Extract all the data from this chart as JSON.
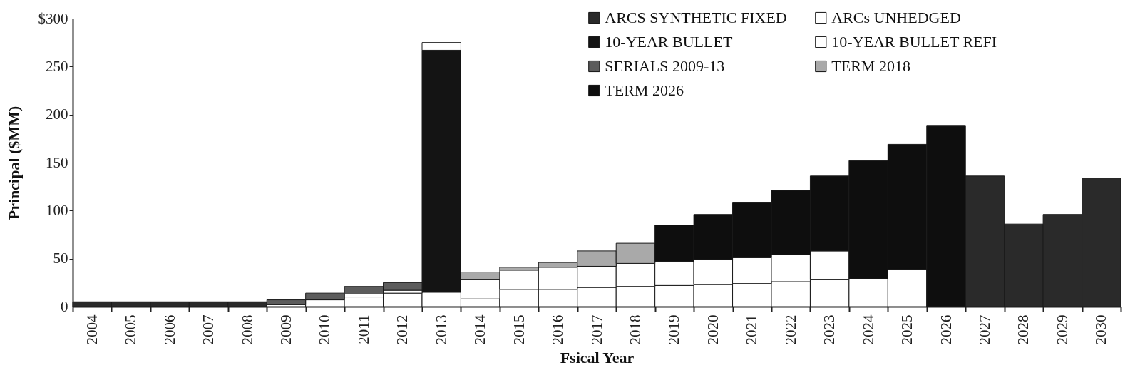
{
  "chart_data": {
    "type": "bar",
    "stacked": true,
    "xlabel": "Fsical Year",
    "ylabel": "Principal ($MM)",
    "categories": [
      "2004",
      "2005",
      "2006",
      "2007",
      "2008",
      "2009",
      "2010",
      "2011",
      "2012",
      "2013",
      "2014",
      "2015",
      "2016",
      "2017",
      "2018",
      "2019",
      "2020",
      "2021",
      "2022",
      "2023",
      "2024",
      "2025",
      "2026",
      "2027",
      "2028",
      "2029",
      "2030"
    ],
    "series": [
      {
        "name": "ARCS SYNTHETIC FIXED",
        "color": "#2a2a2a",
        "values": [
          5,
          5,
          5,
          5,
          5,
          null,
          null,
          null,
          null,
          null,
          null,
          null,
          null,
          null,
          null,
          null,
          null,
          null,
          null,
          null,
          null,
          null,
          null,
          136,
          86,
          96,
          134
        ]
      },
      {
        "name": "ARCs UNHEDGED",
        "color": "#ffffff",
        "values": [
          null,
          null,
          null,
          null,
          null,
          2,
          7,
          10,
          14,
          15,
          8,
          18,
          18,
          20,
          21,
          22,
          23,
          24,
          26,
          28,
          29,
          39,
          null,
          null,
          null,
          null,
          null
        ]
      },
      {
        "name": "10-YEAR BULLET",
        "color": "#141414",
        "values": [
          null,
          null,
          null,
          null,
          null,
          null,
          null,
          null,
          null,
          252,
          null,
          null,
          null,
          null,
          null,
          null,
          null,
          null,
          null,
          null,
          null,
          null,
          null,
          null,
          null,
          null,
          null
        ]
      },
      {
        "name": "10-YEAR BULLET REFI",
        "color": "#ffffff",
        "values": [
          null,
          null,
          null,
          null,
          null,
          null,
          null,
          3,
          3,
          8,
          20,
          20,
          23,
          22,
          24,
          25,
          26,
          27,
          28,
          30,
          null,
          null,
          null,
          null,
          null,
          null,
          null
        ]
      },
      {
        "name": "SERIALS 2009-13",
        "color": "#5c5c5c",
        "values": [
          null,
          null,
          null,
          null,
          null,
          5,
          7,
          8,
          8,
          null,
          null,
          null,
          null,
          null,
          null,
          null,
          null,
          null,
          null,
          null,
          null,
          null,
          null,
          null,
          null,
          null,
          null
        ]
      },
      {
        "name": "TERM 2018",
        "color": "#a9a9a9",
        "values": [
          null,
          null,
          null,
          null,
          null,
          null,
          null,
          null,
          null,
          null,
          8,
          3,
          5,
          16,
          21,
          null,
          null,
          null,
          null,
          null,
          null,
          null,
          null,
          null,
          null,
          null,
          null
        ]
      },
      {
        "name": "TERM 2026",
        "color": "#0e0e0e",
        "values": [
          null,
          null,
          null,
          null,
          null,
          null,
          null,
          null,
          null,
          null,
          null,
          null,
          null,
          null,
          null,
          38,
          47,
          57,
          67,
          78,
          123,
          130,
          188,
          null,
          null,
          null,
          null
        ]
      }
    ],
    "ylim": [
      0,
      300
    ],
    "yticks": [
      0,
      50,
      100,
      150,
      200,
      250,
      {
        "value": 300,
        "label": "$300"
      }
    ],
    "grid": false,
    "legend": "top right"
  }
}
